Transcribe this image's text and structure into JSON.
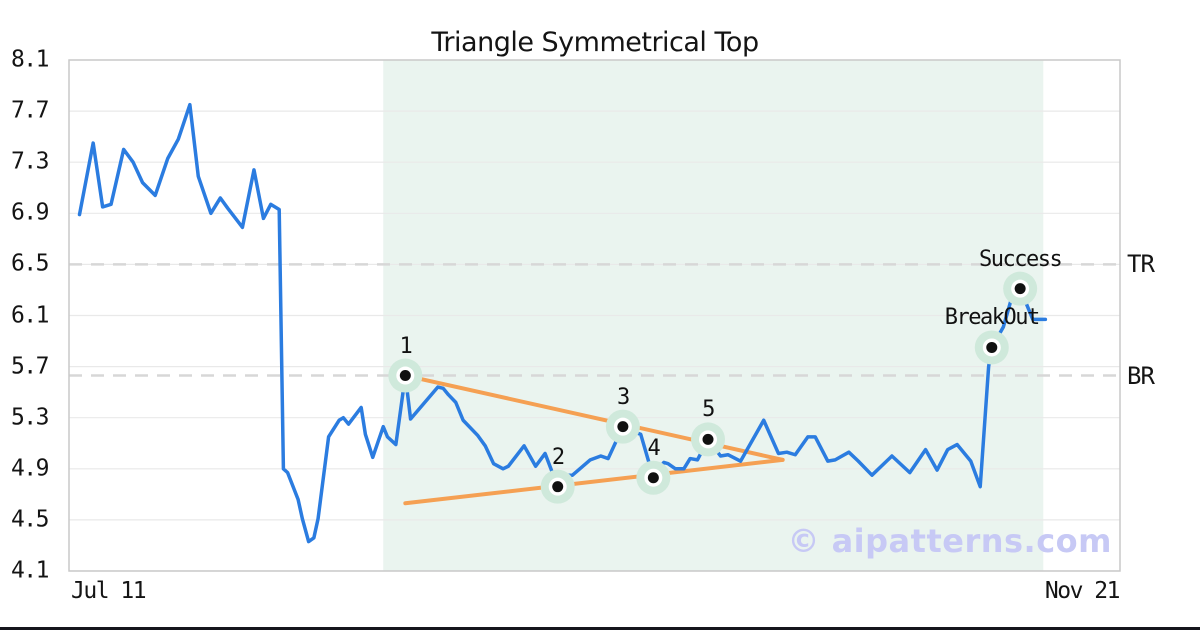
{
  "watermark": "© aipatterns.com",
  "colors": {
    "line_blue": "#2b7ce0",
    "trendline_orange": "#f5a053",
    "marker_halo_mint": "#cfe9db",
    "marker_dot_black": "#111111",
    "pattern_zone_mint": "#eaf4ef",
    "grid_gray": "#e9e9e9",
    "dashed_gray": "#d7d7d7",
    "plot_border_gray": "#c9c9c9",
    "text_black": "#141414",
    "watermark_lavender": "#c7c9f5",
    "bottom_bar_dark": "#15151c"
  },
  "chart_data": {
    "type": "line",
    "title": "Triangle Symmetrical Top",
    "x_axis": {
      "start_label": "Jul 11",
      "end_label": "Nov 21"
    },
    "y_axis": {
      "min": 4.1,
      "max": 8.1,
      "ticks": [
        8.1,
        7.7,
        7.3,
        6.9,
        6.5,
        6.1,
        5.7,
        5.3,
        4.9,
        4.5,
        4.1
      ]
    },
    "grid": true,
    "legend": "none",
    "pattern_zone": {
      "x_start": 0.299,
      "x_end": 0.927
    },
    "levels": [
      {
        "label": "TR",
        "value": 6.5
      },
      {
        "label": "BR",
        "value": 5.63
      }
    ],
    "trendlines": [
      {
        "name": "upper",
        "from": [
          0.32,
          5.63
        ],
        "to": [
          0.679,
          4.97
        ]
      },
      {
        "name": "lower",
        "from": [
          0.32,
          4.63
        ],
        "to": [
          0.679,
          4.97
        ]
      }
    ],
    "markers": [
      {
        "label": "1",
        "x": 0.32,
        "value": 5.63
      },
      {
        "label": "2",
        "x": 0.465,
        "value": 4.76
      },
      {
        "label": "3",
        "x": 0.527,
        "value": 5.23
      },
      {
        "label": "4",
        "x": 0.556,
        "value": 4.83
      },
      {
        "label": "5",
        "x": 0.608,
        "value": 5.13
      },
      {
        "label": "BreakOut",
        "x": 0.878,
        "value": 5.85
      },
      {
        "label": "Success",
        "x": 0.905,
        "value": 6.31
      }
    ],
    "series": [
      {
        "name": "price",
        "points": [
          [
            0.01,
            6.89
          ],
          [
            0.023,
            7.45
          ],
          [
            0.032,
            6.95
          ],
          [
            0.04,
            6.97
          ],
          [
            0.052,
            7.4
          ],
          [
            0.061,
            7.3
          ],
          [
            0.07,
            7.14
          ],
          [
            0.082,
            7.04
          ],
          [
            0.094,
            7.33
          ],
          [
            0.104,
            7.48
          ],
          [
            0.115,
            7.75
          ],
          [
            0.123,
            7.19
          ],
          [
            0.135,
            6.9
          ],
          [
            0.144,
            7.02
          ],
          [
            0.151,
            6.94
          ],
          [
            0.165,
            6.79
          ],
          [
            0.176,
            7.24
          ],
          [
            0.185,
            6.86
          ],
          [
            0.192,
            6.97
          ],
          [
            0.2,
            6.93
          ],
          [
            0.204,
            4.9
          ],
          [
            0.208,
            4.87
          ],
          [
            0.218,
            4.66
          ],
          [
            0.222,
            4.51
          ],
          [
            0.228,
            4.33
          ],
          [
            0.233,
            4.36
          ],
          [
            0.237,
            4.51
          ],
          [
            0.247,
            5.15
          ],
          [
            0.257,
            5.28
          ],
          [
            0.261,
            5.3
          ],
          [
            0.266,
            5.25
          ],
          [
            0.278,
            5.38
          ],
          [
            0.282,
            5.17
          ],
          [
            0.289,
            4.99
          ],
          [
            0.299,
            5.23
          ],
          [
            0.303,
            5.15
          ],
          [
            0.311,
            5.09
          ],
          [
            0.32,
            5.63
          ],
          [
            0.325,
            5.29
          ],
          [
            0.351,
            5.54
          ],
          [
            0.356,
            5.53
          ],
          [
            0.361,
            5.48
          ],
          [
            0.368,
            5.42
          ],
          [
            0.375,
            5.28
          ],
          [
            0.389,
            5.16
          ],
          [
            0.396,
            5.08
          ],
          [
            0.404,
            4.94
          ],
          [
            0.413,
            4.9
          ],
          [
            0.418,
            4.92
          ],
          [
            0.433,
            5.08
          ],
          [
            0.444,
            4.92
          ],
          [
            0.453,
            5.02
          ],
          [
            0.465,
            4.76
          ],
          [
            0.474,
            4.85
          ],
          [
            0.479,
            4.85
          ],
          [
            0.496,
            4.97
          ],
          [
            0.506,
            5.0
          ],
          [
            0.513,
            4.98
          ],
          [
            0.527,
            5.23
          ],
          [
            0.537,
            5.19
          ],
          [
            0.544,
            5.17
          ],
          [
            0.556,
            4.83
          ],
          [
            0.566,
            4.95
          ],
          [
            0.57,
            4.94
          ],
          [
            0.577,
            4.9
          ],
          [
            0.585,
            4.9
          ],
          [
            0.591,
            4.98
          ],
          [
            0.598,
            4.97
          ],
          [
            0.608,
            5.13
          ],
          [
            0.62,
            5.0
          ],
          [
            0.627,
            5.01
          ],
          [
            0.639,
            4.96
          ],
          [
            0.661,
            5.28
          ],
          [
            0.675,
            5.02
          ],
          [
            0.683,
            5.03
          ],
          [
            0.691,
            5.01
          ],
          [
            0.703,
            5.15
          ],
          [
            0.71,
            5.15
          ],
          [
            0.722,
            4.96
          ],
          [
            0.729,
            4.97
          ],
          [
            0.742,
            5.03
          ],
          [
            0.751,
            4.96
          ],
          [
            0.764,
            4.85
          ],
          [
            0.783,
            5.0
          ],
          [
            0.8,
            4.87
          ],
          [
            0.815,
            5.05
          ],
          [
            0.826,
            4.89
          ],
          [
            0.836,
            5.05
          ],
          [
            0.845,
            5.09
          ],
          [
            0.858,
            4.96
          ],
          [
            0.867,
            4.76
          ],
          [
            0.875,
            5.7
          ],
          [
            0.878,
            5.85
          ],
          [
            0.889,
            6.01
          ],
          [
            0.897,
            6.24
          ],
          [
            0.905,
            6.31
          ],
          [
            0.917,
            6.07
          ],
          [
            0.929,
            6.07
          ]
        ]
      }
    ]
  }
}
